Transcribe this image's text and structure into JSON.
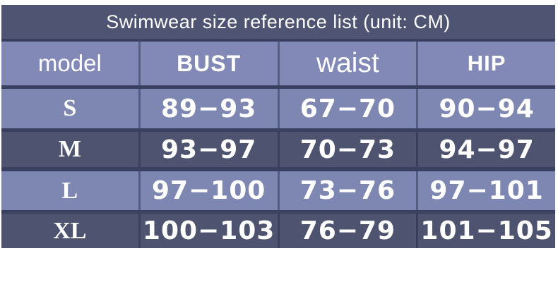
{
  "title": "Swimwear size reference list (unit: CM)",
  "colors": {
    "page_bg": "#ffffff",
    "title_bar_bg": "#4e5472",
    "header_bg": "#8289b6",
    "row_light_bg": "#7e86b2",
    "row_dark_bg": "#4e546f",
    "divider": "#3a4160",
    "text": "#ffffff"
  },
  "table": {
    "columns": [
      "model",
      "BUST",
      "waist",
      "HIP"
    ],
    "rows": [
      {
        "model": "S",
        "bust": "89−93",
        "waist": "67−70",
        "hip": "90−94"
      },
      {
        "model": "M",
        "bust": "93−97",
        "waist": "70−73",
        "hip": "94−97"
      },
      {
        "model": "L",
        "bust": "97−100",
        "waist": "73−76",
        "hip": "97−101"
      },
      {
        "model": "XL",
        "bust": "100−103",
        "waist": "76−79",
        "hip": "101−105"
      }
    ]
  }
}
